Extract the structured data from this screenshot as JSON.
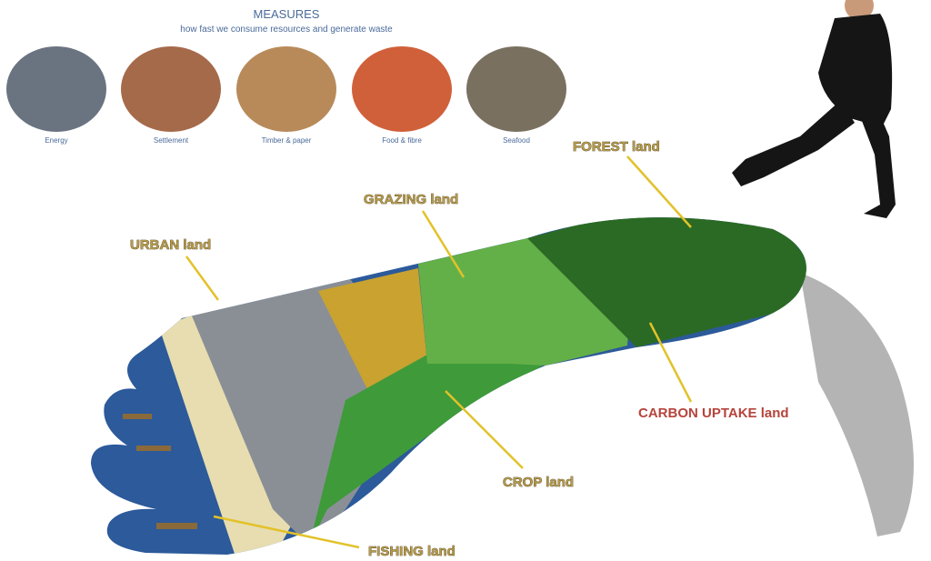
{
  "header": {
    "title": "MEASURES",
    "subtitle": "how fast we consume resources and generate waste"
  },
  "measures": [
    {
      "label": "Energy"
    },
    {
      "label": "Settlement"
    },
    {
      "label": "Timber & paper"
    },
    {
      "label": "Food & fibre"
    },
    {
      "label": "Seafood"
    }
  ],
  "lands": [
    {
      "label": "FOREST land"
    },
    {
      "label": "GRAZING land"
    },
    {
      "label": "URBAN land"
    },
    {
      "label": "CARBON UPTAKE land"
    },
    {
      "label": "CROP land"
    },
    {
      "label": "FISHING land"
    }
  ]
}
